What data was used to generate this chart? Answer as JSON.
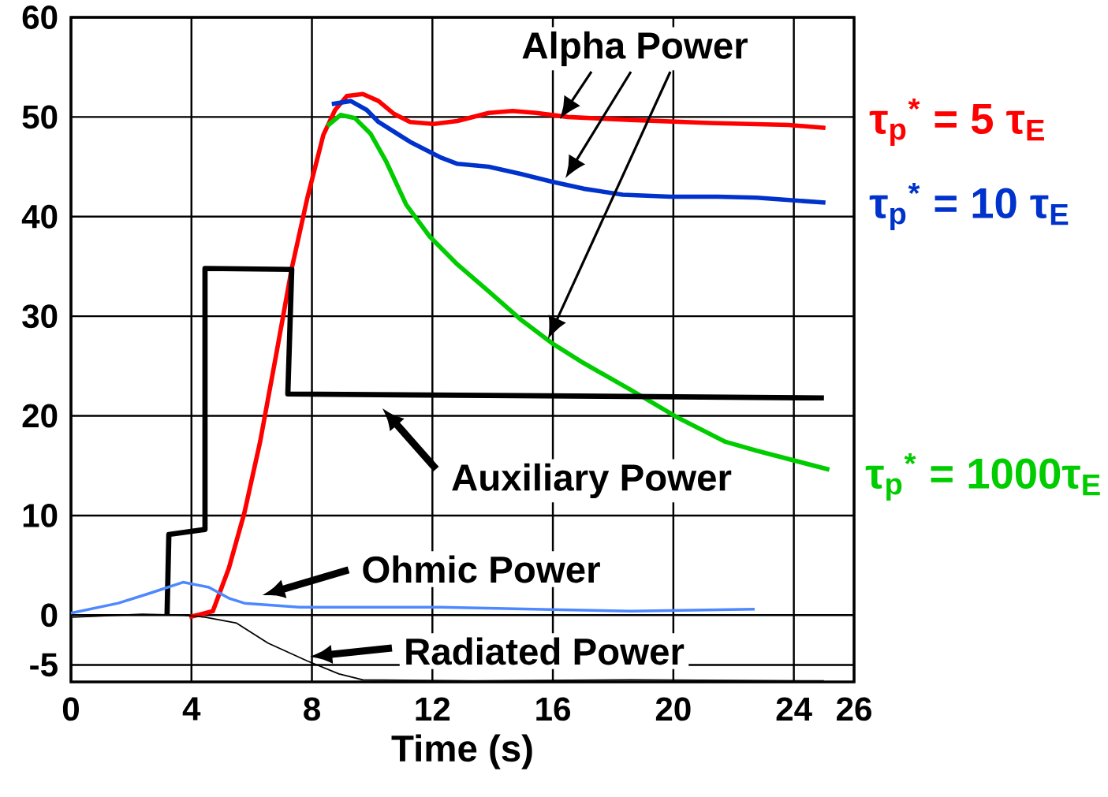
{
  "chart_data": {
    "type": "line",
    "xlabel": "Time (s)",
    "xlim": [
      0,
      26
    ],
    "ylim": [
      -6.7,
      60
    ],
    "xticks": [
      0,
      4,
      8,
      12,
      16,
      20,
      24,
      26
    ],
    "yticks": [
      -5,
      0,
      10,
      20,
      30,
      40,
      50,
      60
    ],
    "grid": true,
    "legend": false,
    "marker": "none",
    "line_style": "solid",
    "annotations": [
      "Alpha Power",
      "Auxiliary Power",
      "Ohmic Power",
      "Radiated Power"
    ],
    "series": [
      {
        "name": "τ$_{p}$$^{*}$ = 5 τ$_{E}$",
        "color": "#ff0000",
        "x": [
          3.93,
          4.71,
          5.24,
          5.76,
          6.28,
          6.81,
          7.33,
          7.85,
          8.38,
          8.77,
          9.16,
          9.69,
          10.21,
          10.73,
          11.26,
          12.04,
          12.83,
          13.87,
          14.66,
          15.45,
          16.49,
          18.59,
          21.2,
          23.82,
          25.05
        ],
        "values": [
          -0.2,
          0.4,
          4.7,
          10.3,
          17.4,
          26.1,
          34.8,
          41.9,
          48.2,
          50.7,
          52.1,
          52.3,
          51.6,
          50.3,
          49.5,
          49.3,
          49.6,
          50.4,
          50.6,
          50.4,
          50.0,
          49.7,
          49.4,
          49.2,
          48.9
        ]
      },
      {
        "name": "τ$_{p}$$^{*}$ = 10 τ$_{E}$",
        "color": "#0033cc",
        "x": [
          8.66,
          9.29,
          9.82,
          10.21,
          11.26,
          12.3,
          12.83,
          13.87,
          14.92,
          15.97,
          17.02,
          18.32,
          19.9,
          21.47,
          22.77,
          25.05
        ],
        "values": [
          51.3,
          51.6,
          50.7,
          49.5,
          47.5,
          45.9,
          45.3,
          45.0,
          44.3,
          43.5,
          42.8,
          42.2,
          42.0,
          42.0,
          41.9,
          41.4
        ]
      },
      {
        "name": "τ$_{p}$$^{*}$ = 1000τ$_{E}$",
        "color": "#00cc00",
        "x": [
          8.51,
          8.95,
          9.42,
          9.95,
          10.47,
          11.13,
          11.91,
          12.83,
          13.87,
          14.92,
          15.97,
          17.02,
          18.59,
          20.16,
          21.73,
          22.77,
          25.18
        ],
        "values": [
          49.1,
          50.2,
          49.9,
          48.3,
          45.5,
          41.2,
          38.0,
          35.2,
          32.5,
          29.7,
          27.3,
          25.3,
          22.6,
          19.8,
          17.4,
          16.5,
          14.6
        ]
      },
      {
        "color": "#000000",
        "x": [
          3.19,
          3.25,
          4.45,
          4.45,
          7.33,
          7.2,
          25.0
        ],
        "values": [
          0,
          8.1,
          8.6,
          34.8,
          34.7,
          22.2,
          21.8
        ]
      },
      {
        "color": "#4d88ff",
        "x": [
          0,
          1.57,
          2.62,
          3.72,
          4.58,
          5.24,
          5.76,
          7.59,
          12.3,
          15.97,
          18.59,
          22.7
        ],
        "values": [
          0.2,
          1.2,
          2.2,
          3.3,
          2.8,
          1.7,
          1.2,
          0.8,
          0.8,
          0.55,
          0.4,
          0.6
        ]
      },
      {
        "color": "#000000",
        "x": [
          0.05,
          2.36,
          3.72,
          4.45,
          5.5,
          6.54,
          7.85,
          8.9,
          9.69,
          13.35,
          18.59,
          25.0
        ],
        "values": [
          -0.2,
          0.1,
          0,
          -0.2,
          -0.8,
          -2.8,
          -4.6,
          -5.9,
          -6.5,
          -6.6,
          -6.5,
          -6.6
        ]
      }
    ]
  }
}
